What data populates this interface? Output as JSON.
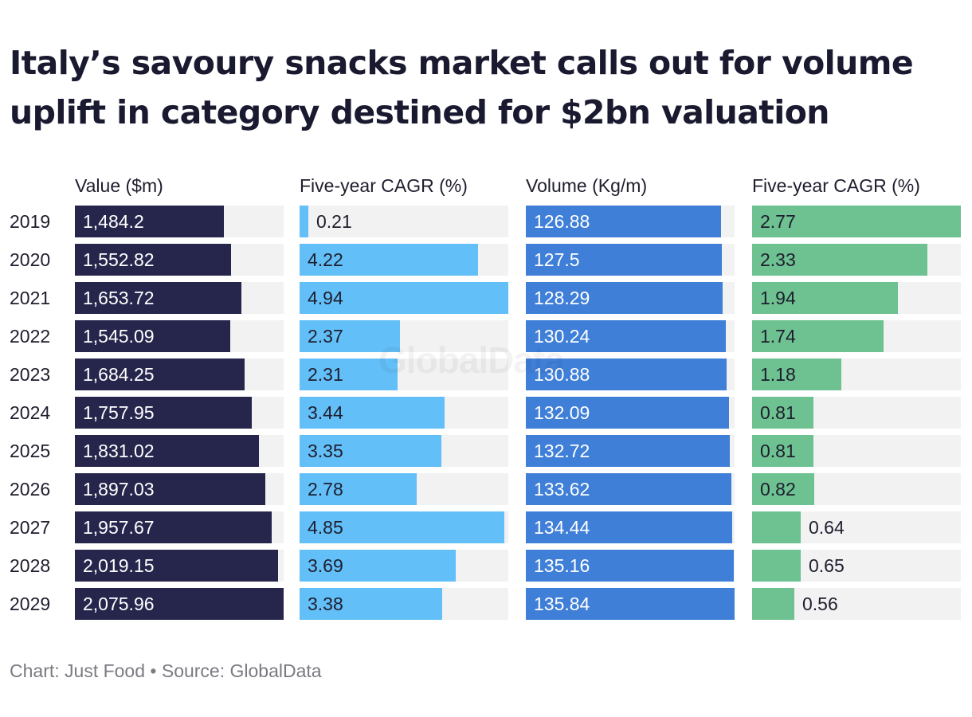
{
  "title": "Italy’s savoury snacks market calls out for volume uplift in category destined for $2bn valuation",
  "footer": "Chart: Just Food • Source: GlobalData",
  "watermark": "GlobalData",
  "chart_data": {
    "type": "table",
    "categories": [
      "2019",
      "2020",
      "2021",
      "2022",
      "2023",
      "2024",
      "2025",
      "2026",
      "2027",
      "2028",
      "2029"
    ],
    "series": [
      {
        "name": "Value ($m)",
        "color": "#26264d",
        "label_style": "light",
        "max": 2075.96,
        "labels": [
          "1,484.2",
          "1,552.82",
          "1,653.72",
          "1,545.09",
          "1,684.25",
          "1,757.95",
          "1,831.02",
          "1,897.03",
          "1,957.67",
          "2,019.15",
          "2,075.96"
        ],
        "values": [
          1484.2,
          1552.82,
          1653.72,
          1545.09,
          1684.25,
          1757.95,
          1831.02,
          1897.03,
          1957.67,
          2019.15,
          2075.96
        ]
      },
      {
        "name": "Five-year CAGR (%)",
        "color": "#63bff8",
        "label_style": "dark",
        "max": 4.94,
        "labels": [
          "0.21",
          "4.22",
          "4.94",
          "2.37",
          "2.31",
          "3.44",
          "3.35",
          "2.78",
          "4.85",
          "3.69",
          "3.38"
        ],
        "values": [
          0.21,
          4.22,
          4.94,
          2.37,
          2.31,
          3.44,
          3.35,
          2.78,
          4.85,
          3.69,
          3.38
        ]
      },
      {
        "name": "Volume (Kg/m)",
        "color": "#3f7fd8",
        "label_style": "light",
        "max": 135.84,
        "labels": [
          "126.88",
          "127.5",
          "128.29",
          "130.24",
          "130.88",
          "132.09",
          "132.72",
          "133.62",
          "134.44",
          "135.16",
          "135.84"
        ],
        "values": [
          126.88,
          127.5,
          128.29,
          130.24,
          130.88,
          132.09,
          132.72,
          133.62,
          134.44,
          135.16,
          135.84
        ]
      },
      {
        "name": "Five-year CAGR (%)",
        "color": "#6ec191",
        "label_style": "dark",
        "max": 2.77,
        "labels": [
          "2.77",
          "2.33",
          "1.94",
          "1.74",
          "1.18",
          "0.81",
          "0.81",
          "0.82",
          "0.64",
          "0.65",
          "0.56"
        ],
        "values": [
          2.77,
          2.33,
          1.94,
          1.74,
          1.18,
          0.81,
          0.81,
          0.82,
          0.64,
          0.65,
          0.56
        ]
      }
    ]
  }
}
